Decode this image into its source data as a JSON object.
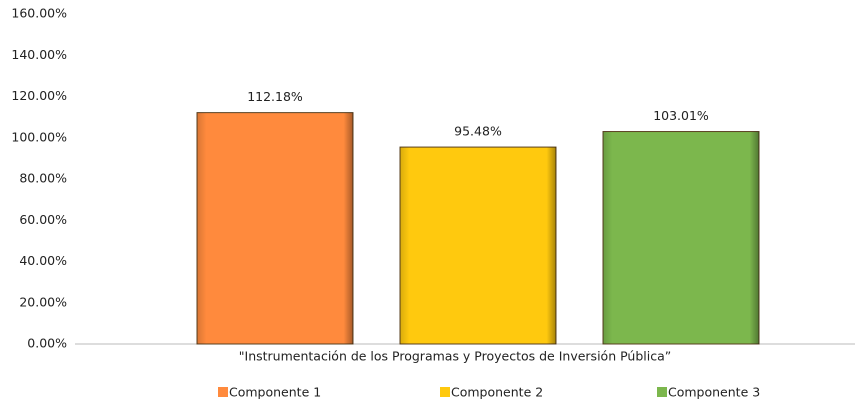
{
  "chart_data": {
    "type": "bar",
    "categories": [
      "\"Instrumentación de los Programas y Proyectos de Inversión Pública”"
    ],
    "series": [
      {
        "name": "Componente 1",
        "color": "#ff8a3d",
        "values": [
          112.18
        ],
        "value_labels": [
          "112.18%"
        ]
      },
      {
        "name": "Componente 2",
        "color": "#ffc90e",
        "values": [
          95.48
        ],
        "value_labels": [
          "95.48%"
        ]
      },
      {
        "name": "Componente 3",
        "color": "#7cb74d",
        "values": [
          103.01
        ],
        "value_labels": [
          "103.01%"
        ]
      }
    ],
    "ylim": [
      0,
      160
    ],
    "yticks": [
      {
        "value": 0,
        "label": "0.00%"
      },
      {
        "value": 20,
        "label": "20.00%"
      },
      {
        "value": 40,
        "label": "40.00%"
      },
      {
        "value": 60,
        "label": "60.00%"
      },
      {
        "value": 80,
        "label": "80.00%"
      },
      {
        "value": 100,
        "label": "100.00%"
      },
      {
        "value": 120,
        "label": "120.00%"
      },
      {
        "value": 140,
        "label": "140.00%"
      },
      {
        "value": 160,
        "label": "160.00%"
      }
    ],
    "grid": false,
    "legend": "bottom"
  }
}
